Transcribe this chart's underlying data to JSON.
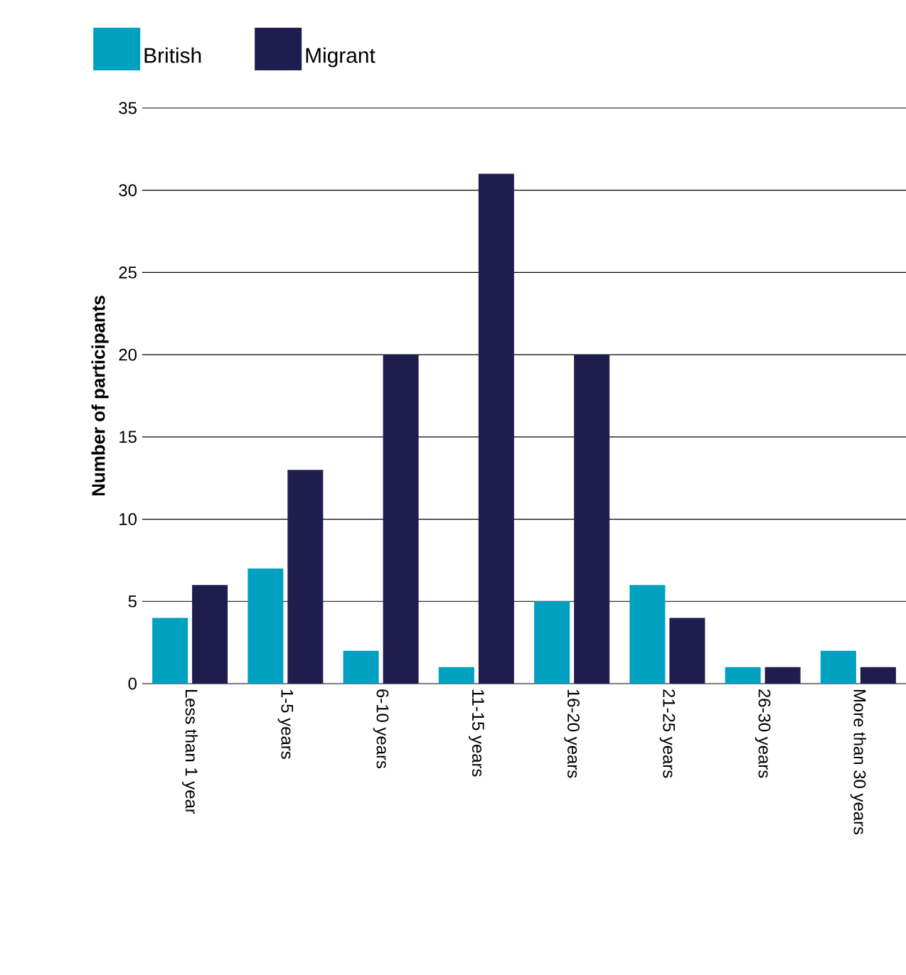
{
  "chart_data": {
    "type": "bar",
    "ylabel": "Number of participants",
    "categories": [
      "Less than 1 year",
      "1-5 years",
      "6-10 years",
      "11-15 years",
      "16-20 years",
      "21-25 years",
      "26-30 years",
      "More than 30 years"
    ],
    "series": [
      {
        "name": "British",
        "color": "#00a0c0",
        "values": [
          4,
          7,
          2,
          1,
          5,
          6,
          1,
          2
        ]
      },
      {
        "name": "Migrant",
        "color": "#1e1d50",
        "values": [
          6,
          13,
          20,
          31,
          20,
          4,
          1,
          1
        ]
      }
    ],
    "ylim": [
      0,
      35
    ],
    "yticks": [
      0,
      5,
      10,
      15,
      20,
      25,
      30,
      35
    ],
    "grid": "y",
    "legend": "top left"
  }
}
